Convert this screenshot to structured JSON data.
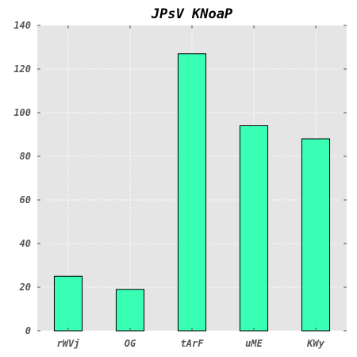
{
  "chart_data": {
    "type": "bar",
    "title": "JPsV KNoaP",
    "categories": [
      "rWVj",
      "OG",
      "tArF",
      "uME",
      "KWy"
    ],
    "values": [
      25,
      19,
      127,
      94,
      88
    ],
    "xlabel": "",
    "ylabel": "",
    "ylim": [
      0,
      140
    ],
    "yticks": [
      0,
      20,
      40,
      60,
      80,
      100,
      120,
      140
    ],
    "grid": true,
    "bar_color": "#38ffb4",
    "background_color": "#e5e5e5"
  }
}
